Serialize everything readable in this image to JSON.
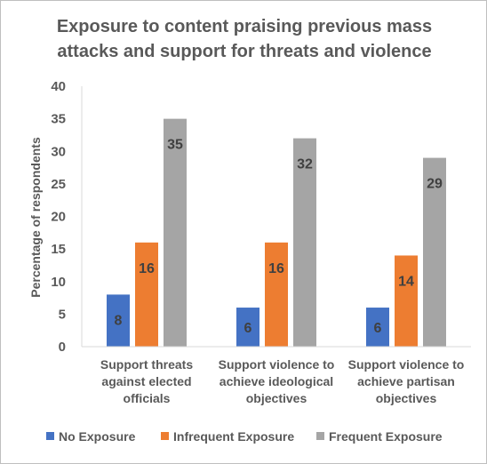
{
  "chart_data": {
    "type": "bar",
    "title_lines": [
      "Exposure to content praising previous mass",
      "attacks and support for threats and violence"
    ],
    "ylabel": "Percentage of respondents",
    "xlabel": "",
    "ylim": [
      0,
      40
    ],
    "yticks": [
      0,
      5,
      10,
      15,
      20,
      25,
      30,
      35,
      40
    ],
    "categories": [
      [
        "Support threats",
        "against elected",
        "officials"
      ],
      [
        "Support violence to",
        "achieve ideological",
        "objectives"
      ],
      [
        "Support violence to",
        "achieve partisan",
        "objectives"
      ]
    ],
    "series": [
      {
        "name": "No Exposure",
        "color": "#4472c4",
        "values": [
          8,
          6,
          6
        ]
      },
      {
        "name": "Infrequent Exposure",
        "color": "#ed7d31",
        "values": [
          16,
          16,
          14
        ]
      },
      {
        "name": "Frequent Exposure",
        "color": "#a5a5a5",
        "values": [
          35,
          32,
          29
        ]
      }
    ],
    "grid": false,
    "legend_position": "bottom"
  }
}
